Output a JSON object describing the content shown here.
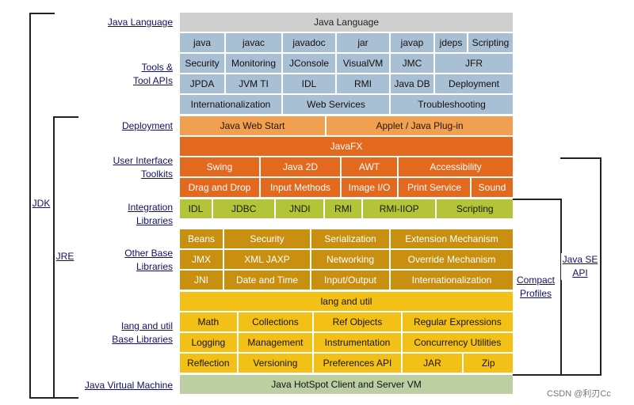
{
  "rows": [
    {
      "style": "gray",
      "top": 16,
      "cells": [
        {
          "name": "java-language-header",
          "text": "Java Language",
          "w": 420
        }
      ]
    },
    {
      "style": "blue",
      "top": 42,
      "cells": [
        {
          "name": "tool-java",
          "text": "java",
          "w": 56
        },
        {
          "name": "tool-javac",
          "text": "javac",
          "w": 70
        },
        {
          "name": "tool-javadoc",
          "text": "javadoc",
          "w": 66
        },
        {
          "name": "tool-jar",
          "text": "jar",
          "w": 66
        },
        {
          "name": "tool-javap",
          "text": "javap",
          "w": 54
        },
        {
          "name": "tool-jdeps",
          "text": "jdeps",
          "w": 40
        },
        {
          "name": "tool-scripting",
          "text": "Scripting",
          "w": 56
        }
      ]
    },
    {
      "style": "blue",
      "top": 68,
      "cells": [
        {
          "name": "tool-security",
          "text": "Security",
          "w": 56
        },
        {
          "name": "tool-monitoring",
          "text": "Monitoring",
          "w": 70
        },
        {
          "name": "tool-jconsole",
          "text": "JConsole",
          "w": 66
        },
        {
          "name": "tool-visualvm",
          "text": "VisualVM",
          "w": 66
        },
        {
          "name": "tool-jmc",
          "text": "JMC",
          "w": 54
        },
        {
          "name": "tool-jfr",
          "text": "JFR",
          "w": 98
        }
      ]
    },
    {
      "style": "blue",
      "top": 94,
      "cells": [
        {
          "name": "tool-jpda",
          "text": "JPDA",
          "w": 56
        },
        {
          "name": "tool-jvmti",
          "text": "JVM TI",
          "w": 70
        },
        {
          "name": "tool-idl",
          "text": "IDL",
          "w": 66
        },
        {
          "name": "tool-rmi",
          "text": "RMI",
          "w": 66
        },
        {
          "name": "tool-javadb",
          "text": "Java DB",
          "w": 54
        },
        {
          "name": "tool-deployment",
          "text": "Deployment",
          "w": 98
        }
      ]
    },
    {
      "style": "blue",
      "top": 120,
      "cells": [
        {
          "name": "tool-internationalization",
          "text": "Internationalization",
          "w": 128
        },
        {
          "name": "tool-web-services",
          "text": "Web Services",
          "w": 134
        },
        {
          "name": "tool-troubleshooting",
          "text": "Troubleshooting",
          "w": 154
        }
      ]
    },
    {
      "style": "lorange",
      "top": 147,
      "cells": [
        {
          "name": "java-web-start",
          "text": "Java Web Start",
          "w": 183
        },
        {
          "name": "applet-plugin",
          "text": "Applet / Java Plug-in",
          "w": 235
        }
      ]
    },
    {
      "style": "dorange",
      "top": 173,
      "cells": [
        {
          "name": "javafx",
          "text": "JavaFX",
          "w": 420
        }
      ]
    },
    {
      "style": "dorange",
      "top": 199,
      "cells": [
        {
          "name": "ui-swing",
          "text": "Swing",
          "w": 100
        },
        {
          "name": "ui-java2d",
          "text": "Java 2D",
          "w": 100
        },
        {
          "name": "ui-awt",
          "text": "AWT",
          "w": 70
        },
        {
          "name": "ui-accessibility",
          "text": "Accessibility",
          "w": 144
        }
      ]
    },
    {
      "style": "dorange",
      "top": 225,
      "cells": [
        {
          "name": "ui-drag-and-drop",
          "text": "Drag and Drop",
          "w": 100
        },
        {
          "name": "ui-input-methods",
          "text": "Input Methods",
          "w": 100
        },
        {
          "name": "ui-image-io",
          "text": "Image I/O",
          "w": 70
        },
        {
          "name": "ui-print-service",
          "text": "Print Service",
          "w": 90
        },
        {
          "name": "ui-sound",
          "text": "Sound",
          "w": 52
        }
      ]
    },
    {
      "style": "lime",
      "top": 252,
      "cells": [
        {
          "name": "int-idl",
          "text": "IDL",
          "w": 40
        },
        {
          "name": "int-jdbc",
          "text": "JDBC",
          "w": 78
        },
        {
          "name": "int-jndi",
          "text": "JNDI",
          "w": 60
        },
        {
          "name": "int-rmi",
          "text": "RMI",
          "w": 46
        },
        {
          "name": "int-rmi-iiop",
          "text": "RMI-IIOP",
          "w": 92
        },
        {
          "name": "int-scripting",
          "text": "Scripting",
          "w": 96
        }
      ]
    },
    {
      "style": "brown",
      "top": 290,
      "cells": [
        {
          "name": "base-beans",
          "text": "Beans",
          "w": 54
        },
        {
          "name": "base-security",
          "text": "Security",
          "w": 108
        },
        {
          "name": "base-serialization",
          "text": "Serialization",
          "w": 98
        },
        {
          "name": "base-extension",
          "text": "Extension Mechanism",
          "w": 154
        }
      ]
    },
    {
      "style": "brown",
      "top": 316,
      "cells": [
        {
          "name": "base-jmx",
          "text": "JMX",
          "w": 54
        },
        {
          "name": "base-xml-jaxp",
          "text": "XML JAXP",
          "w": 108
        },
        {
          "name": "base-networking",
          "text": "Networking",
          "w": 98
        },
        {
          "name": "base-override",
          "text": "Override Mechanism",
          "w": 154
        }
      ]
    },
    {
      "style": "brown",
      "top": 342,
      "cells": [
        {
          "name": "base-jni",
          "text": "JNI",
          "w": 54
        },
        {
          "name": "base-date-time",
          "text": "Date and Time",
          "w": 108
        },
        {
          "name": "base-input-output",
          "text": "Input/Output",
          "w": 98
        },
        {
          "name": "base-internationalization",
          "text": "Internationalization",
          "w": 154
        }
      ]
    },
    {
      "style": "yellow",
      "top": 369,
      "cells": [
        {
          "name": "lang-and-util",
          "text": "lang and util",
          "w": 420
        }
      ]
    },
    {
      "style": "yellow",
      "top": 395,
      "cells": [
        {
          "name": "lang-math",
          "text": "Math",
          "w": 72
        },
        {
          "name": "lang-collections",
          "text": "Collections",
          "w": 94
        },
        {
          "name": "lang-ref-objects",
          "text": "Ref Objects",
          "w": 110
        },
        {
          "name": "lang-regex",
          "text": "Regular Expressions",
          "w": 140
        }
      ]
    },
    {
      "style": "yellow",
      "top": 421,
      "cells": [
        {
          "name": "lang-logging",
          "text": "Logging",
          "w": 72
        },
        {
          "name": "lang-management",
          "text": "Management",
          "w": 94
        },
        {
          "name": "lang-instrumentation",
          "text": "Instrumentation",
          "w": 110
        },
        {
          "name": "lang-concurrency",
          "text": "Concurrency Utilities",
          "w": 140
        }
      ]
    },
    {
      "style": "yellow",
      "top": 447,
      "cells": [
        {
          "name": "lang-reflection",
          "text": "Reflection",
          "w": 72
        },
        {
          "name": "lang-versioning",
          "text": "Versioning",
          "w": 94
        },
        {
          "name": "lang-preferences",
          "text": "Preferences API",
          "w": 110
        },
        {
          "name": "lang-jar",
          "text": "JAR",
          "w": 76
        },
        {
          "name": "lang-zip",
          "text": "Zip",
          "w": 62
        }
      ]
    },
    {
      "style": "sage",
      "top": 474,
      "cells": [
        {
          "name": "hotspot-vm",
          "text": "Java HotSpot Client and Server VM",
          "w": 420
        }
      ]
    }
  ],
  "labels": {
    "java_language": "Java Language",
    "tools_line1": "Tools &",
    "tools_line2": "Tool APIs",
    "deployment": "Deployment",
    "ui_line1": "User Interface",
    "ui_line2": "Toolkits",
    "integration_line1": "Integration",
    "integration_line2": "Libraries",
    "other_line1": "Other Base",
    "other_line2": "Libraries",
    "lang_line1": "lang and util",
    "lang_line2": "Base Libraries",
    "jvm": "Java Virtual Machine"
  },
  "side": {
    "jdk": "JDK",
    "jre": "JRE",
    "compact_line1": "Compact",
    "compact_line2": "Profiles",
    "javase_line1": "Java SE",
    "javase_line2": "API"
  },
  "watermark": "CSDN @利刃Cc"
}
